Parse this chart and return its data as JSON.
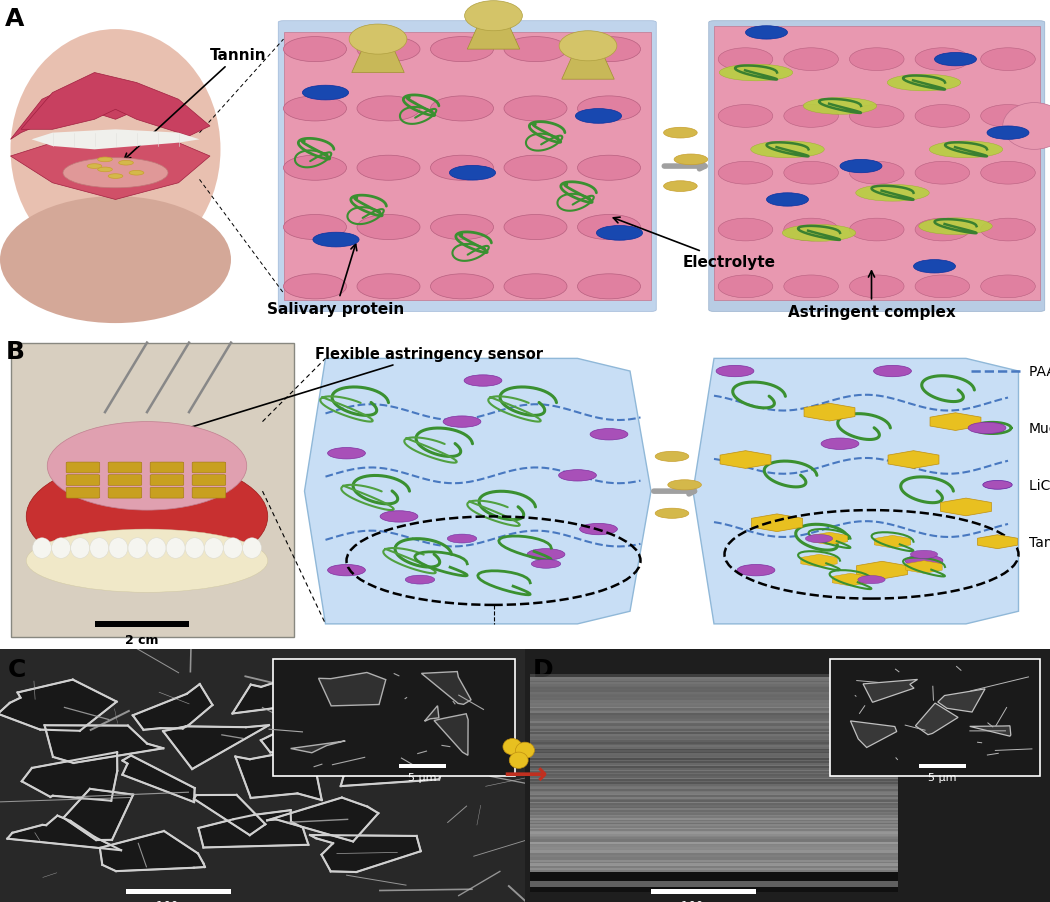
{
  "panel_labels": [
    "A",
    "B",
    "C",
    "D"
  ],
  "panel_label_fontsize": 18,
  "panel_label_fontweight": "bold",
  "background_color": "#ffffff",
  "figsize": [
    10.5,
    9.03
  ],
  "dpi": 100,
  "colors": {
    "lip_dark": "#c05060",
    "lip_mid": "#d07080",
    "lip_light": "#e09090",
    "teeth_white": "#f5f5f0",
    "tongue_pink": "#e8a0a8",
    "tongue_surface": "#d87888",
    "bump_pink": "#e090a8",
    "bump_dark": "#c07090",
    "blue_bg": "#b8cce8",
    "blue_bg2": "#a8c4e0",
    "tannin_gold": "#d4b84a",
    "tannin_outer": "#c8a030",
    "mucin_green": "#4a9040",
    "electrolyte_blue": "#1a4ab0",
    "electrolyte_light": "#3060c0",
    "arrow_gray": "#909090",
    "arrow_red": "#c03020",
    "photo_bg": "#c8b8a8",
    "dental_red": "#c03030",
    "dental_pink": "#e09898",
    "sensor_gold": "#c8a020",
    "hydrogel_blue": "#c0d8f0",
    "licl_purple": "#a050b0",
    "complex_yellow": "#d8c040",
    "sem_dark": "#282828",
    "sem_mid": "#686868",
    "sem_light": "#a8a8a8",
    "scale_white": "#ffffff"
  }
}
